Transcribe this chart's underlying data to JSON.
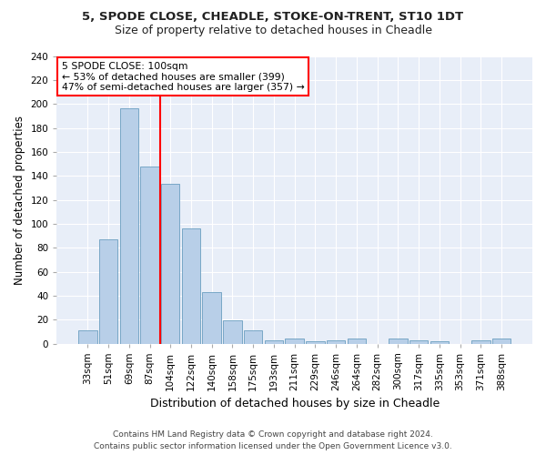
{
  "title_line1": "5, SPODE CLOSE, CHEADLE, STOKE-ON-TRENT, ST10 1DT",
  "title_line2": "Size of property relative to detached houses in Cheadle",
  "xlabel": "Distribution of detached houses by size in Cheadle",
  "ylabel": "Number of detached properties",
  "categories": [
    "33sqm",
    "51sqm",
    "69sqm",
    "87sqm",
    "104sqm",
    "122sqm",
    "140sqm",
    "158sqm",
    "175sqm",
    "193sqm",
    "211sqm",
    "229sqm",
    "246sqm",
    "264sqm",
    "282sqm",
    "300sqm",
    "317sqm",
    "335sqm",
    "353sqm",
    "371sqm",
    "388sqm"
  ],
  "values": [
    11,
    87,
    196,
    148,
    133,
    96,
    43,
    19,
    11,
    3,
    4,
    2,
    3,
    4,
    0,
    4,
    3,
    2,
    0,
    3,
    4
  ],
  "bar_color": "#b8cfe8",
  "bar_edge_color": "#6a9ec0",
  "vline_color": "red",
  "annotation_title": "5 SPODE CLOSE: 100sqm",
  "annotation_line1": "← 53% of detached houses are smaller (399)",
  "annotation_line2": "47% of semi-detached houses are larger (357) →",
  "annotation_box_color": "white",
  "annotation_box_edge_color": "red",
  "ylim": [
    0,
    240
  ],
  "yticks": [
    0,
    20,
    40,
    60,
    80,
    100,
    120,
    140,
    160,
    180,
    200,
    220,
    240
  ],
  "footer_line1": "Contains HM Land Registry data © Crown copyright and database right 2024.",
  "footer_line2": "Contains public sector information licensed under the Open Government Licence v3.0.",
  "fig_background_color": "#ffffff",
  "plot_bg_color": "#e8eef8",
  "grid_color": "#ffffff",
  "title1_fontsize": 9.5,
  "title2_fontsize": 9.0,
  "ylabel_fontsize": 8.5,
  "xlabel_fontsize": 9.0,
  "tick_fontsize": 7.5,
  "footer_fontsize": 6.5
}
